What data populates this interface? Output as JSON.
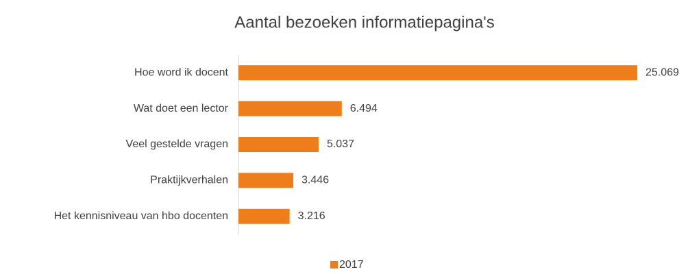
{
  "chart_data": {
    "type": "bar",
    "orientation": "horizontal",
    "title": "Aantal bezoeken informatiepagina's",
    "categories": [
      "Hoe word ik docent",
      "Wat doet een lector",
      "Veel gestelde vragen",
      "Praktijkverhalen",
      "Het kennisniveau van hbo docenten"
    ],
    "series": [
      {
        "name": "2017",
        "color": "#ee7d1c",
        "values": [
          25069,
          6494,
          5037,
          3446,
          3216
        ],
        "value_labels": [
          "25.069",
          "6.494",
          "5.037",
          "3.446",
          "3.216"
        ]
      }
    ],
    "legend": "bottom"
  }
}
